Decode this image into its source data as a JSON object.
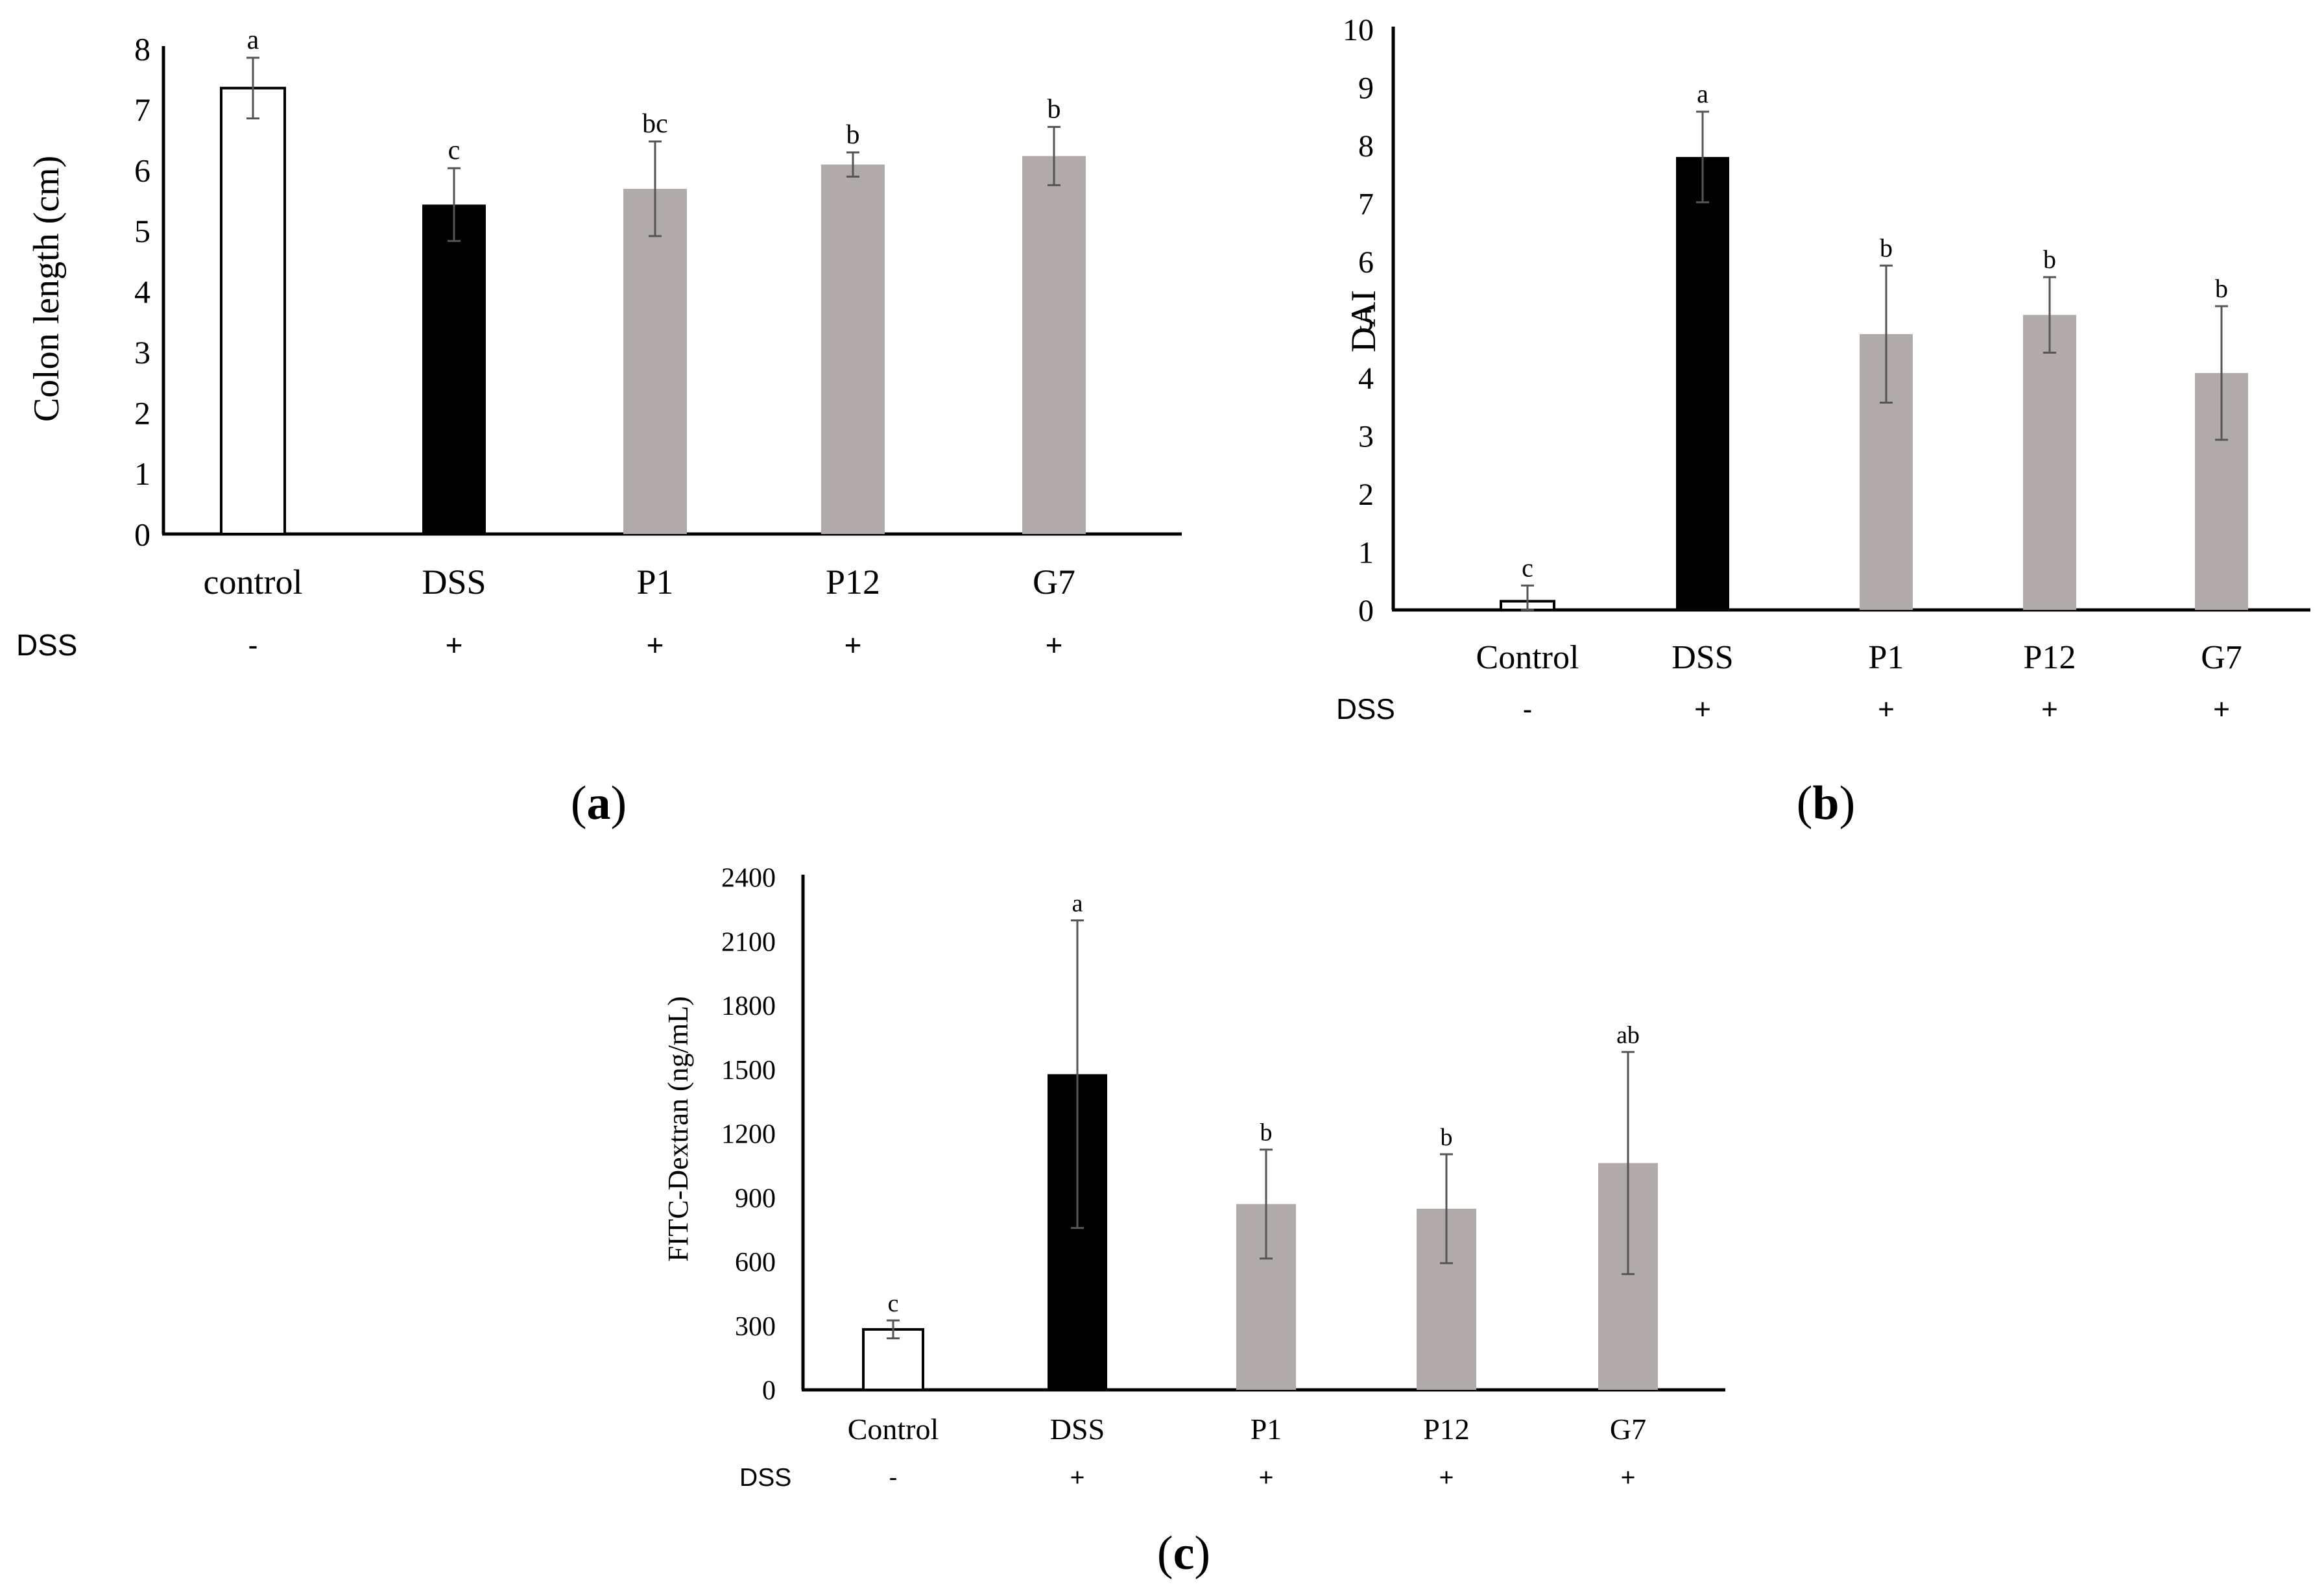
{
  "colors": {
    "control": "#ffffff",
    "dss": "#000000",
    "treatment": "#b0aba8",
    "axis": "#000000",
    "error": "#555555"
  },
  "chart_data": [
    {
      "id": "a",
      "type": "bar",
      "caption_letter": "a",
      "ylabel": "Colon length (cm)",
      "ylim": [
        0,
        8
      ],
      "yticks": [
        0,
        1,
        2,
        3,
        4,
        5,
        6,
        7,
        8
      ],
      "categories": [
        "control",
        "DSS",
        "P1",
        "P12",
        "G7"
      ],
      "values": [
        7.35,
        5.43,
        5.69,
        6.09,
        6.23
      ],
      "errors": [
        0.5,
        0.6,
        0.78,
        0.2,
        0.48
      ],
      "letters": [
        "a",
        "c",
        "bc",
        "b",
        "b"
      ],
      "fills": [
        "control",
        "dss",
        "treatment",
        "treatment",
        "treatment"
      ],
      "dss_label": "DSS",
      "dss_signs": [
        "-",
        "+",
        "+",
        "+",
        "+"
      ],
      "grid": false
    },
    {
      "id": "b",
      "type": "bar",
      "caption_letter": "b",
      "ylabel": "DAI",
      "ylim": [
        0,
        10
      ],
      "yticks": [
        0,
        1,
        2,
        3,
        4,
        5,
        6,
        7,
        8,
        9,
        10
      ],
      "categories": [
        "Control",
        "DSS",
        "P1",
        "P12",
        "G7"
      ],
      "values": [
        0.15,
        7.8,
        4.75,
        5.08,
        4.08
      ],
      "errors": [
        0.27,
        0.78,
        1.18,
        0.65,
        1.15
      ],
      "letters": [
        "c",
        "a",
        "b",
        "b",
        "b"
      ],
      "fills": [
        "control",
        "dss",
        "treatment",
        "treatment",
        "treatment"
      ],
      "dss_label": "DSS",
      "dss_signs": [
        "-",
        "+",
        "+",
        "+",
        "+"
      ],
      "grid": false
    },
    {
      "id": "c",
      "type": "bar",
      "caption_letter": "c",
      "ylabel": "FITC-Dextran (ng/mL)",
      "ylim": [
        0,
        2400
      ],
      "yticks": [
        0,
        300,
        600,
        900,
        1200,
        1500,
        1800,
        2100,
        2400
      ],
      "categories": [
        "Control",
        "DSS",
        "P1",
        "P12",
        "G7"
      ],
      "values": [
        283,
        1478,
        870,
        848,
        1062
      ],
      "errors": [
        42,
        720,
        255,
        255,
        520
      ],
      "letters": [
        "c",
        "a",
        "b",
        "b",
        "ab"
      ],
      "fills": [
        "control",
        "dss",
        "treatment",
        "treatment",
        "treatment"
      ],
      "dss_label": "DSS",
      "dss_signs": [
        "-",
        "+",
        "+",
        "+",
        "+"
      ],
      "grid": false
    }
  ]
}
